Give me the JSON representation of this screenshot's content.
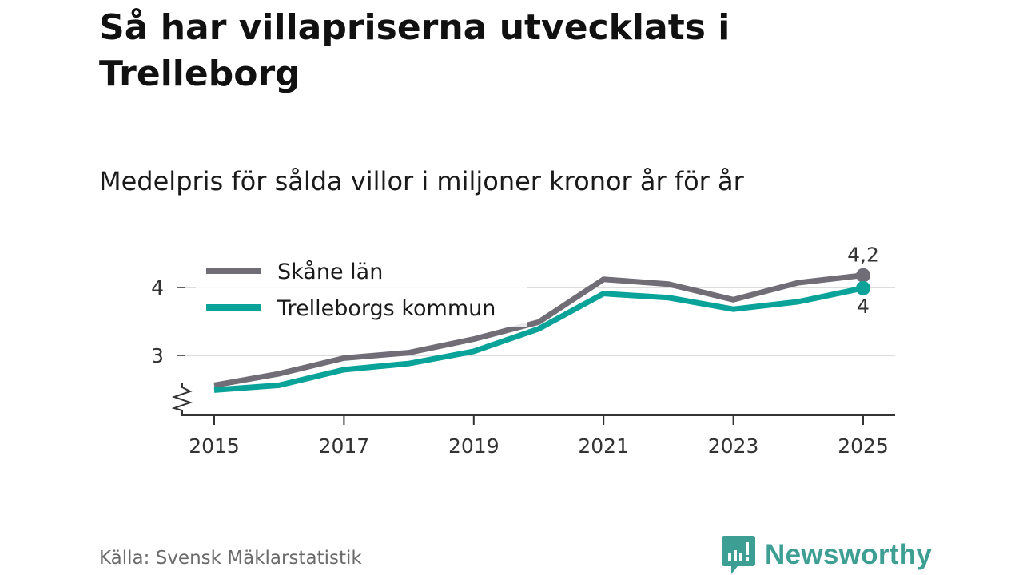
{
  "header": {
    "title": "Så har villapriserna utvecklats i Trelleborg",
    "subtitle": "Medelpris för sålda villor i miljoner kronor år för år"
  },
  "footer": {
    "source": "Källa: Svensk Mäklarstatistik",
    "logo": "Newsworthy"
  },
  "colors": {
    "skane": "#706d76",
    "trelleborg": "#0aa39a",
    "grid": "#dddddd",
    "logo": "#3d9e93"
  },
  "chart_data": {
    "type": "line",
    "title": "Medelpris för sålda villor i miljoner kronor år för år",
    "xlabel": "",
    "ylabel": "",
    "x": [
      2015,
      2016,
      2017,
      2018,
      2019,
      2020,
      2021,
      2022,
      2023,
      2024,
      2025
    ],
    "xticks": [
      "2015",
      "2017",
      "2019",
      "2021",
      "2023",
      "2025"
    ],
    "yticks": [
      "3",
      "4"
    ],
    "ylim": [
      2.12,
      4.4
    ],
    "xlim": [
      2014.6,
      2025.5
    ],
    "grid": true,
    "legend_position": "top-left",
    "series": [
      {
        "name": "Skåne län",
        "values": [
          2.56,
          2.73,
          2.96,
          3.04,
          3.24,
          3.49,
          4.12,
          4.05,
          3.82,
          4.07,
          4.18
        ],
        "end_label": "4,2"
      },
      {
        "name": "Trelleborgs kommun",
        "values": [
          2.49,
          2.56,
          2.79,
          2.88,
          3.06,
          3.39,
          3.91,
          3.85,
          3.68,
          3.79,
          3.99
        ],
        "end_label": "4"
      }
    ]
  }
}
